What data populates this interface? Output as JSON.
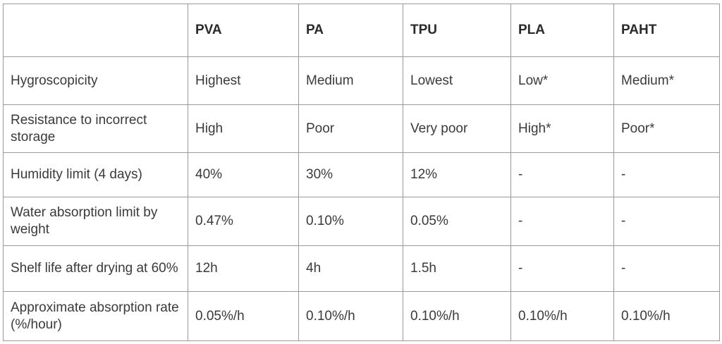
{
  "table": {
    "columns": [
      "",
      "PVA",
      "PA",
      "TPU",
      "PLA",
      "PAHT"
    ],
    "rows": [
      {
        "label": "Hygroscopicity",
        "values": [
          "Highest",
          "Medium",
          "Lowest",
          "Low*",
          "Medium*"
        ]
      },
      {
        "label": "Resistance to incorrect storage",
        "values": [
          "High",
          "Poor",
          "Very poor",
          "High*",
          "Poor*"
        ]
      },
      {
        "label": "Humidity limit (4 days)",
        "values": [
          "40%",
          "30%",
          "12%",
          "-",
          "-"
        ]
      },
      {
        "label": "Water absorption limit by weight",
        "values": [
          "0.47%",
          "0.10%",
          "0.05%",
          "-",
          "-"
        ]
      },
      {
        "label": "Shelf life after drying at 60%",
        "values": [
          "12h",
          "4h",
          "1.5h",
          "-",
          "-"
        ]
      },
      {
        "label": "Approximate absorption rate (%/hour)",
        "values": [
          "0.05%/h",
          "0.10%/h",
          "0.10%/h",
          "0.10%/h",
          "0.10%/h"
        ]
      }
    ]
  }
}
